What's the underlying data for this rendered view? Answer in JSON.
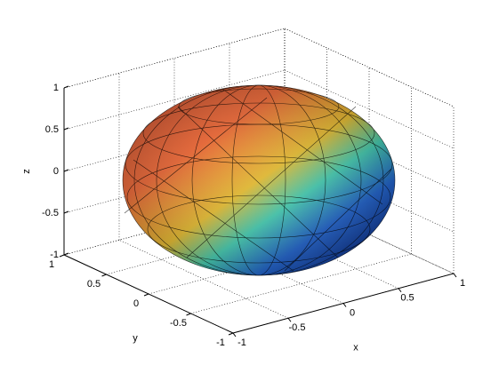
{
  "chart_data": {
    "type": "surface3d",
    "xlabel": "x",
    "ylabel": "y",
    "zlabel": "z",
    "xlim": [
      -1,
      1
    ],
    "ylim": [
      -1,
      1
    ],
    "zlim": [
      -1,
      1
    ],
    "xticks": [
      -1,
      -0.5,
      0,
      0.5,
      1
    ],
    "yticks": [
      -1,
      -0.5,
      0,
      0.5,
      1
    ],
    "zticks": [
      -1,
      -0.5,
      0,
      0.5,
      1
    ],
    "grid": true
  }
}
